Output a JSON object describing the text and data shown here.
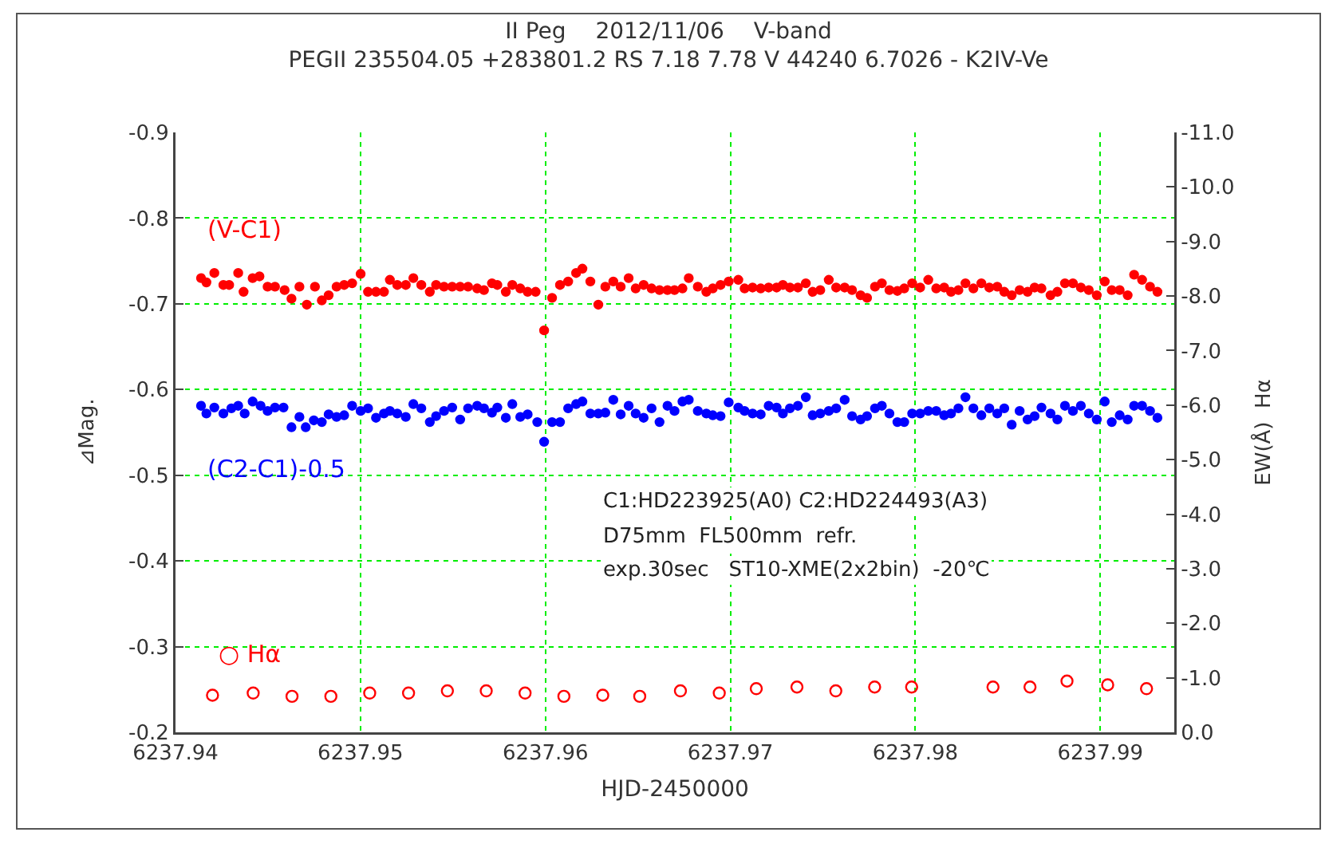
{
  "chart_data": {
    "type": "scatter",
    "title": "II Peg　 2012/11/06　 V-band",
    "subtitle": "PEGII 235504.05 +283801.2 RS 7.18 7.78 V 44240 6.7026 - K2IV-Ve",
    "xlabel": "HJD-2450000",
    "ylabel": "⊿Mag.",
    "y2label": "EW(Å)  Hα",
    "xlim": [
      6237.94,
      6237.994
    ],
    "xticks": [
      6237.94,
      6237.95,
      6237.96,
      6237.97,
      6237.98,
      6237.99
    ],
    "ylim": [
      -0.2,
      -0.9
    ],
    "yticks": [
      -0.9,
      -0.8,
      -0.7,
      -0.6,
      -0.5,
      -0.4,
      -0.3,
      -0.2
    ],
    "y2lim": [
      0,
      -11
    ],
    "y2ticks": [
      {
        "value": -11,
        "label": "-11.0"
      },
      {
        "value": -10,
        "label": "-10.0"
      },
      {
        "value": -9,
        "label": "-9.0"
      },
      {
        "value": -8,
        "label": "-8.0"
      },
      {
        "value": -7,
        "label": "-7.0"
      },
      {
        "value": -6,
        "label": "-6.0"
      },
      {
        "value": -5,
        "label": "-5.0"
      },
      {
        "value": -4,
        "label": "-4.0"
      },
      {
        "value": -3,
        "label": "-3.0"
      },
      {
        "value": -2,
        "label": "-2.0"
      },
      {
        "value": -1,
        "label": "-1.0"
      },
      {
        "value": 0,
        "label": "0.0"
      }
    ],
    "grid": true,
    "legend": false,
    "annotations": [
      "C1:HD223925(A0) C2:HD224493(A3)",
      "D75mm  FL500mm  refr.",
      "exp.30sec   ST10-XME(2x2bin)  -20℃"
    ],
    "series": [
      {
        "name": "(V-C1)",
        "color": "#ff0000",
        "marker": "circle",
        "x": [
          6237.94138,
          6237.94167,
          6237.9421,
          6237.94259,
          6237.9429,
          6237.94339,
          6237.94368,
          6237.94417,
          6237.94454,
          6237.94498,
          6237.94538,
          6237.9459,
          6237.94627,
          6237.9467,
          6237.9471,
          6237.94754,
          6237.94791,
          6237.94828,
          6237.94871,
          6237.94912,
          6237.94955,
          6237.95001,
          6237.95041,
          6237.95084,
          6237.95127,
          6237.95159,
          6237.95199,
          6237.95245,
          6237.95286,
          6237.95329,
          6237.95375,
          6237.95409,
          6237.95452,
          6237.95496,
          6237.95539,
          6237.95582,
          6237.95631,
          6237.95668,
          6237.95711,
          6237.9574,
          6237.95786,
          6237.95821,
          6237.95864,
          6237.95904,
          6237.95947,
          6237.95993,
          6237.96036,
          6237.96079,
          6237.96123,
          6237.96166,
          6237.962,
          6237.96243,
          6237.96286,
          6237.96324,
          6237.96367,
          6237.96407,
          6237.9645,
          6237.96488,
          6237.96531,
          6237.96574,
          6237.96617,
          6237.9666,
          6237.96698,
          6237.96741,
          6237.96775,
          6237.96824,
          6237.9687,
          6237.96905,
          6237.96947,
          6237.96991,
          6237.97043,
          6237.97077,
          6237.9712,
          6237.97164,
          6237.97207,
          6237.9725,
          6237.97284,
          6237.97322,
          6237.97365,
          6237.97408,
          6237.97445,
          6237.97486,
          6237.97532,
          6237.97572,
          6237.97618,
          6237.97658,
          6237.97704,
          6237.97739,
          6237.97782,
          6237.97819,
          6237.9786,
          6237.97903,
          6237.9794,
          6237.97983,
          6237.98026,
          6237.9807,
          6237.98113,
          6237.98156,
          6237.98193,
          6237.98233,
          6237.98271,
          6237.98314,
          6237.98357,
          6237.984,
          6237.98443,
          6237.98481,
          6237.98521,
          6237.98564,
          6237.98607,
          6237.98645,
          6237.98682,
          6237.98731,
          6237.98768,
          6237.98809,
          6237.98852,
          6237.98895,
          6237.98938,
          6237.98981,
          6237.99024,
          6237.99062,
          6237.99105,
          6237.99148,
          6237.99183,
          6237.99226,
          6237.99269,
          6237.99309
        ],
        "values": [
          -0.73,
          -0.725,
          -0.736,
          -0.722,
          -0.722,
          -0.736,
          -0.714,
          -0.73,
          -0.732,
          -0.72,
          -0.72,
          -0.716,
          -0.706,
          -0.72,
          -0.699,
          -0.72,
          -0.704,
          -0.71,
          -0.72,
          -0.722,
          -0.724,
          -0.735,
          -0.714,
          -0.714,
          -0.714,
          -0.728,
          -0.722,
          -0.722,
          -0.73,
          -0.722,
          -0.714,
          -0.722,
          -0.72,
          -0.72,
          -0.72,
          -0.72,
          -0.718,
          -0.716,
          -0.724,
          -0.722,
          -0.714,
          -0.722,
          -0.718,
          -0.714,
          -0.714,
          -0.669,
          -0.707,
          -0.722,
          -0.726,
          -0.736,
          -0.741,
          -0.726,
          -0.699,
          -0.72,
          -0.726,
          -0.72,
          -0.73,
          -0.718,
          -0.722,
          -0.718,
          -0.716,
          -0.716,
          -0.716,
          -0.718,
          -0.73,
          -0.72,
          -0.714,
          -0.718,
          -0.722,
          -0.726,
          -0.728,
          -0.718,
          -0.719,
          -0.718,
          -0.719,
          -0.719,
          -0.722,
          -0.719,
          -0.719,
          -0.724,
          -0.714,
          -0.716,
          -0.728,
          -0.719,
          -0.719,
          -0.716,
          -0.71,
          -0.707,
          -0.72,
          -0.724,
          -0.716,
          -0.715,
          -0.718,
          -0.724,
          -0.719,
          -0.728,
          -0.718,
          -0.719,
          -0.714,
          -0.716,
          -0.724,
          -0.718,
          -0.724,
          -0.719,
          -0.72,
          -0.714,
          -0.71,
          -0.716,
          -0.714,
          -0.719,
          -0.718,
          -0.71,
          -0.714,
          -0.724,
          -0.724,
          -0.719,
          -0.716,
          -0.71,
          -0.726,
          -0.716,
          -0.716,
          -0.71,
          -0.734,
          -0.728,
          -0.72,
          -0.714
        ]
      },
      {
        "name": "(C2-C1)-0.5",
        "color": "#0000ff",
        "marker": "circle",
        "x": [
          6237.94138,
          6237.94167,
          6237.9421,
          6237.94259,
          6237.94302,
          6237.94339,
          6237.94374,
          6237.94417,
          6237.9446,
          6237.94498,
          6237.94538,
          6237.94584,
          6237.94627,
          6237.9467,
          6237.94704,
          6237.94748,
          6237.94791,
          6237.94828,
          6237.94871,
          6237.94912,
          6237.94955,
          6237.95001,
          6237.95041,
          6237.95084,
          6237.95127,
          6237.95159,
          6237.95199,
          6237.95245,
          6237.95286,
          6237.95329,
          6237.95375,
          6237.95409,
          6237.95452,
          6237.95496,
          6237.95539,
          6237.95582,
          6237.95631,
          6237.95668,
          6237.95711,
          6237.9574,
          6237.95786,
          6237.95821,
          6237.95864,
          6237.95904,
          6237.95956,
          6237.95993,
          6237.96036,
          6237.96079,
          6237.96123,
          6237.96166,
          6237.962,
          6237.96243,
          6237.96286,
          6237.96324,
          6237.96367,
          6237.96407,
          6237.9645,
          6237.96488,
          6237.96531,
          6237.96574,
          6237.96617,
          6237.9666,
          6237.96698,
          6237.96741,
          6237.96775,
          6237.96824,
          6237.9687,
          6237.96905,
          6237.96947,
          6237.96991,
          6237.97043,
          6237.97077,
          6237.9712,
          6237.97164,
          6237.97207,
          6237.9725,
          6237.97284,
          6237.97322,
          6237.97365,
          6237.97408,
          6237.97445,
          6237.97486,
          6237.97532,
          6237.97572,
          6237.97618,
          6237.97658,
          6237.97704,
          6237.97739,
          6237.97782,
          6237.97819,
          6237.9786,
          6237.97903,
          6237.9794,
          6237.97983,
          6237.98026,
          6237.9807,
          6237.98113,
          6237.98156,
          6237.98193,
          6237.98233,
          6237.98271,
          6237.98314,
          6237.98357,
          6237.984,
          6237.98443,
          6237.98481,
          6237.98521,
          6237.98564,
          6237.98607,
          6237.98645,
          6237.98682,
          6237.98731,
          6237.98768,
          6237.98809,
          6237.98852,
          6237.98895,
          6237.98938,
          6237.98981,
          6237.99024,
          6237.99062,
          6237.99105,
          6237.99148,
          6237.99183,
          6237.99226,
          6237.99269,
          6237.99309
        ],
        "values": [
          -0.581,
          -0.572,
          -0.579,
          -0.572,
          -0.578,
          -0.581,
          -0.572,
          -0.586,
          -0.581,
          -0.575,
          -0.579,
          -0.579,
          -0.556,
          -0.568,
          -0.556,
          -0.564,
          -0.562,
          -0.571,
          -0.568,
          -0.57,
          -0.581,
          -0.575,
          -0.578,
          -0.567,
          -0.572,
          -0.575,
          -0.572,
          -0.568,
          -0.583,
          -0.578,
          -0.562,
          -0.569,
          -0.575,
          -0.579,
          -0.565,
          -0.578,
          -0.581,
          -0.578,
          -0.573,
          -0.579,
          -0.567,
          -0.583,
          -0.568,
          -0.571,
          -0.562,
          -0.539,
          -0.562,
          -0.562,
          -0.578,
          -0.583,
          -0.586,
          -0.572,
          -0.572,
          -0.573,
          -0.588,
          -0.571,
          -0.581,
          -0.572,
          -0.567,
          -0.578,
          -0.562,
          -0.581,
          -0.575,
          -0.586,
          -0.588,
          -0.575,
          -0.572,
          -0.57,
          -0.569,
          -0.585,
          -0.579,
          -0.575,
          -0.572,
          -0.571,
          -0.581,
          -0.579,
          -0.572,
          -0.578,
          -0.581,
          -0.591,
          -0.57,
          -0.572,
          -0.575,
          -0.578,
          -0.588,
          -0.569,
          -0.565,
          -0.569,
          -0.578,
          -0.581,
          -0.572,
          -0.562,
          -0.562,
          -0.572,
          -0.572,
          -0.575,
          -0.575,
          -0.57,
          -0.572,
          -0.578,
          -0.591,
          -0.578,
          -0.57,
          -0.578,
          -0.572,
          -0.578,
          -0.559,
          -0.575,
          -0.565,
          -0.569,
          -0.579,
          -0.572,
          -0.565,
          -0.581,
          -0.575,
          -0.581,
          -0.572,
          -0.565,
          -0.586,
          -0.562,
          -0.57,
          -0.565,
          -0.581,
          -0.581,
          -0.575,
          -0.567
        ]
      },
      {
        "name": "○ Hα",
        "color": "#ff0000",
        "marker": "open circle",
        "axis": "y2",
        "x": [
          6237.942,
          6237.9442,
          6237.9463,
          6237.9484,
          6237.9505,
          6237.9526,
          6237.9547,
          6237.9568,
          6237.9589,
          6237.961,
          6237.9631,
          6237.9651,
          6237.9673,
          6237.9694,
          6237.9714,
          6237.9736,
          6237.9757,
          6237.9778,
          6237.9798,
          6237.9842,
          6237.9862,
          6237.9882,
          6237.9904,
          6237.9925
        ],
        "values": [
          -0.68,
          -0.72,
          -0.66,
          -0.66,
          -0.72,
          -0.72,
          -0.76,
          -0.76,
          -0.72,
          -0.66,
          -0.68,
          -0.66,
          -0.76,
          -0.72,
          -0.8,
          -0.83,
          -0.76,
          -0.83,
          -0.83,
          -0.83,
          -0.83,
          -0.94,
          -0.87,
          -0.8
        ]
      }
    ]
  }
}
